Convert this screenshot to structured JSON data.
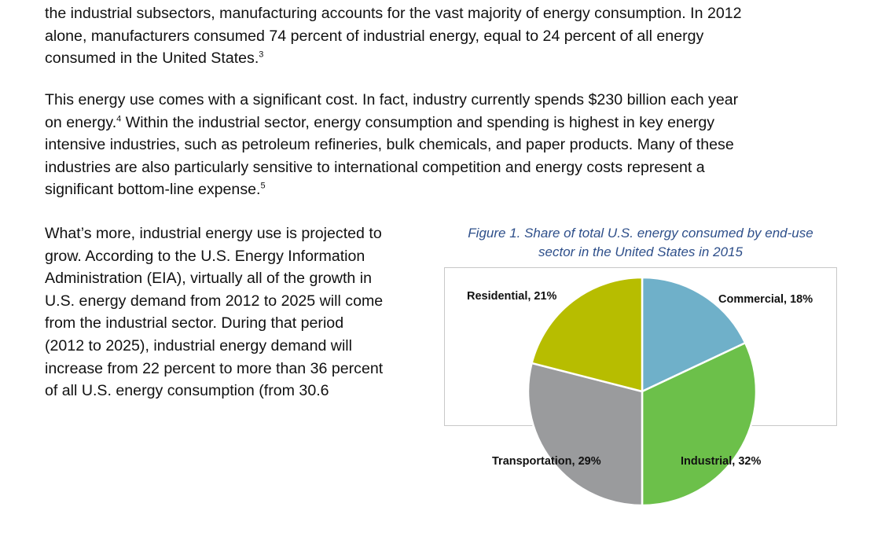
{
  "paragraphs": [
    {
      "lines": [
        "the industrial subsectors, manufacturing accounts for the vast majority of energy consumption. In 2012",
        "alone, manufacturers consumed 74 percent of industrial energy, equal to 24 percent of all energy",
        "consumed in the United States."
      ],
      "footnote": "3"
    },
    {
      "lines": [
        "This energy use comes with a significant cost. In fact, industry currently spends $230 billion each year",
        "on energy.",
        " Within the industrial sector, energy consumption and spending is highest in key energy",
        "intensive industries, such as petroleum refineries, bulk chemicals, and paper products. Many of these",
        "industries are also particularly sensitive to international competition and energy costs represent a",
        "significant bottom-line expense."
      ],
      "footnotes": [
        "4",
        "5"
      ]
    },
    {
      "lines": [
        "What’s more, industrial energy use is projected to",
        "grow. According to the U.S. Energy Information",
        "Administration (EIA), virtually all of the growth in",
        "U.S. energy demand from 2012 to 2025 will come",
        "from the industrial sector. During that period",
        "(2012 to 2025), industrial energy demand will",
        "increase from 22 percent to more than 36 percent",
        "of all U.S. energy consumption (from 30.6"
      ]
    }
  ],
  "figure": {
    "caption_lines": [
      "Figure 1. Share of total U.S. energy consumed by end-use",
      "sector in the United States in 2015"
    ]
  },
  "chart_data": {
    "type": "pie",
    "title": "Figure 1. Share of total U.S. energy consumed by end-use sector in the United States in 2015",
    "start": "top",
    "direction": "clockwise",
    "slices": [
      {
        "name": "Commercial",
        "value": 18,
        "label": "Commercial, 18%",
        "color": "#6fb0c9"
      },
      {
        "name": "Industrial",
        "value": 32,
        "label": "Industrial, 32%",
        "color": "#6cc04a"
      },
      {
        "name": "Transportation",
        "value": 29,
        "label": "Transportation, 29%",
        "color": "#9a9b9d"
      },
      {
        "name": "Residential",
        "value": 21,
        "label": "Residential, 21%",
        "color": "#b7bd00"
      }
    ]
  }
}
